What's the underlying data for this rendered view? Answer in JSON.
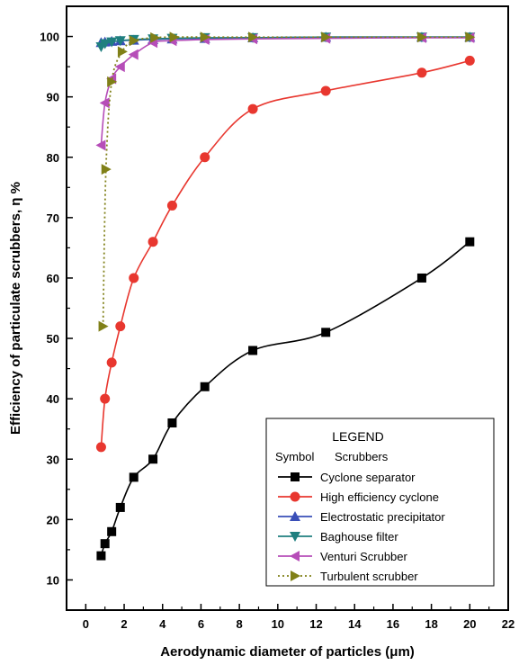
{
  "chart_data": {
    "type": "line",
    "xlabel": "Aerodynamic diameter of particles (μm)",
    "ylabel": "Efficiency of particulate scrubbers, η %",
    "xlim": [
      -1,
      22
    ],
    "ylim": [
      5,
      105
    ],
    "x_ticks": [
      0,
      2,
      4,
      6,
      8,
      10,
      12,
      14,
      16,
      18,
      20,
      22
    ],
    "y_ticks": [
      10,
      20,
      30,
      40,
      50,
      60,
      70,
      80,
      90,
      100
    ],
    "grid": false,
    "legend": {
      "title": "LEGEND",
      "header_symbol": "Symbol",
      "header_name": "Scrubbers",
      "placement": "bottom-right"
    },
    "series": [
      {
        "name": "Cyclone separator",
        "color": "#000000",
        "marker": "square",
        "line": "solid",
        "x": [
          0.8,
          1.0,
          1.35,
          1.8,
          2.5,
          3.5,
          4.5,
          6.2,
          8.7,
          12.5,
          17.5,
          20.0
        ],
        "y": [
          14,
          16,
          18,
          22,
          27,
          30,
          36,
          42,
          48,
          51,
          60,
          66
        ]
      },
      {
        "name": "High efficiency cyclone",
        "color": "#e8372f",
        "marker": "circle",
        "line": "solid",
        "x": [
          0.8,
          1.0,
          1.35,
          1.8,
          2.5,
          3.5,
          4.5,
          6.2,
          8.7,
          12.5,
          17.5,
          20.0
        ],
        "y": [
          32,
          40,
          46,
          52,
          60,
          66,
          72,
          80,
          88,
          91,
          94,
          96
        ]
      },
      {
        "name": "Electrostatic precipitator",
        "color": "#3a4fb8",
        "marker": "triangle-up",
        "line": "solid",
        "x": [
          0.8,
          1.0,
          1.35,
          1.8,
          2.5,
          3.5,
          4.5,
          6.2,
          8.7,
          12.5,
          17.5,
          20.0
        ],
        "y": [
          99,
          99.1,
          99.2,
          99.3,
          99.4,
          99.5,
          99.6,
          99.7,
          99.8,
          99.9,
          99.9,
          99.9
        ]
      },
      {
        "name": "Baghouse filter",
        "color": "#1f7f7f",
        "marker": "triangle-down",
        "line": "solid",
        "x": [
          0.8,
          1.0,
          1.35,
          1.8,
          2.5,
          3.5,
          4.5,
          6.2,
          8.7,
          12.5,
          17.5,
          20.0
        ],
        "y": [
          98.3,
          98.8,
          99.1,
          99.3,
          99.5,
          99.6,
          99.7,
          99.8,
          99.8,
          99.9,
          99.9,
          99.9
        ]
      },
      {
        "name": "Venturi Scrubber",
        "color": "#b64db8",
        "marker": "triangle-left",
        "line": "solid",
        "x": [
          0.8,
          1.0,
          1.35,
          1.8,
          2.5,
          3.5,
          4.5,
          6.2,
          8.7,
          12.5,
          17.5,
          20.0
        ],
        "y": [
          82,
          89,
          93,
          95,
          97,
          99,
          99.3,
          99.5,
          99.6,
          99.7,
          99.8,
          99.8
        ]
      },
      {
        "name": "Turbulent scrubber",
        "color": "#808018",
        "marker": "triangle-right",
        "line": "dotted",
        "x": [
          0.9,
          1.05,
          1.35,
          1.9,
          2.5,
          3.6,
          4.6,
          6.2,
          8.7,
          12.5,
          17.5,
          20.0
        ],
        "y": [
          52,
          78,
          92.5,
          97.5,
          99.3,
          99.8,
          99.9,
          99.9,
          99.9,
          99.9,
          99.9,
          99.9
        ]
      }
    ]
  }
}
